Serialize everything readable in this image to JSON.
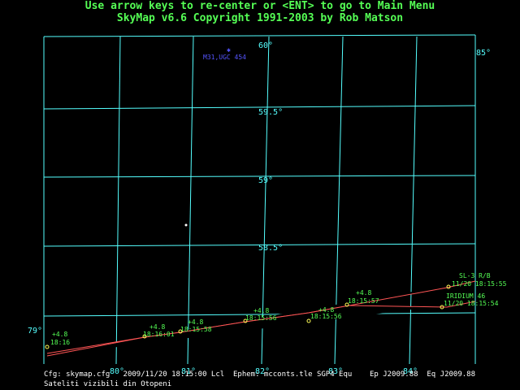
{
  "header": {
    "line1": "Use arrow keys to re-center or <ENT> to go to Main Menu",
    "line2": "SkyMap v6.6 Copyright 1991-2003 by Rob Matson"
  },
  "grid": {
    "dec_labels": [
      "60°",
      "59.5°",
      "59°",
      "58.5°"
    ],
    "ra_labels": [
      "79°",
      "80°",
      "81°",
      "82°",
      "83°",
      "84°",
      "85°"
    ]
  },
  "object": {
    "name": "M31,UGC 454"
  },
  "satellites": [
    {
      "name": "SL-3 R/B",
      "time": "11/20 18:15:55",
      "passes": [
        {
          "mag": "+4.8",
          "time": "18:16"
        },
        {
          "mag": "+4.8",
          "time": "18:16:01"
        },
        {
          "mag": "+4.8",
          "time": "18:15:56"
        },
        {
          "mag": "+4.8",
          "time": "18:15:57"
        }
      ]
    },
    {
      "name": "IRIDIUM 46",
      "time": "11/20 18:15:54",
      "passes": [
        {
          "mag": "+4.8",
          "time": "18:15:58"
        },
        {
          "mag": "+4.8",
          "time": "18:15:56"
        }
      ]
    }
  ],
  "status": {
    "line1": "Cfg: skymap.cfg   2009/11/20 18:15:00 Lcl  Ephem: mcconts.tle SGP4 Equ",
    "epoch": "Ep J2009.88  Eq J2009.88",
    "line2": "Sateliti vizibili din Otopeni"
  },
  "colors": {
    "header": "#55ff55",
    "grid": "#55ffff",
    "track": "#ff5555",
    "satellite": "#ffff55",
    "label": "#55ff55",
    "object": "#5555ff",
    "status": "#ffffff"
  }
}
